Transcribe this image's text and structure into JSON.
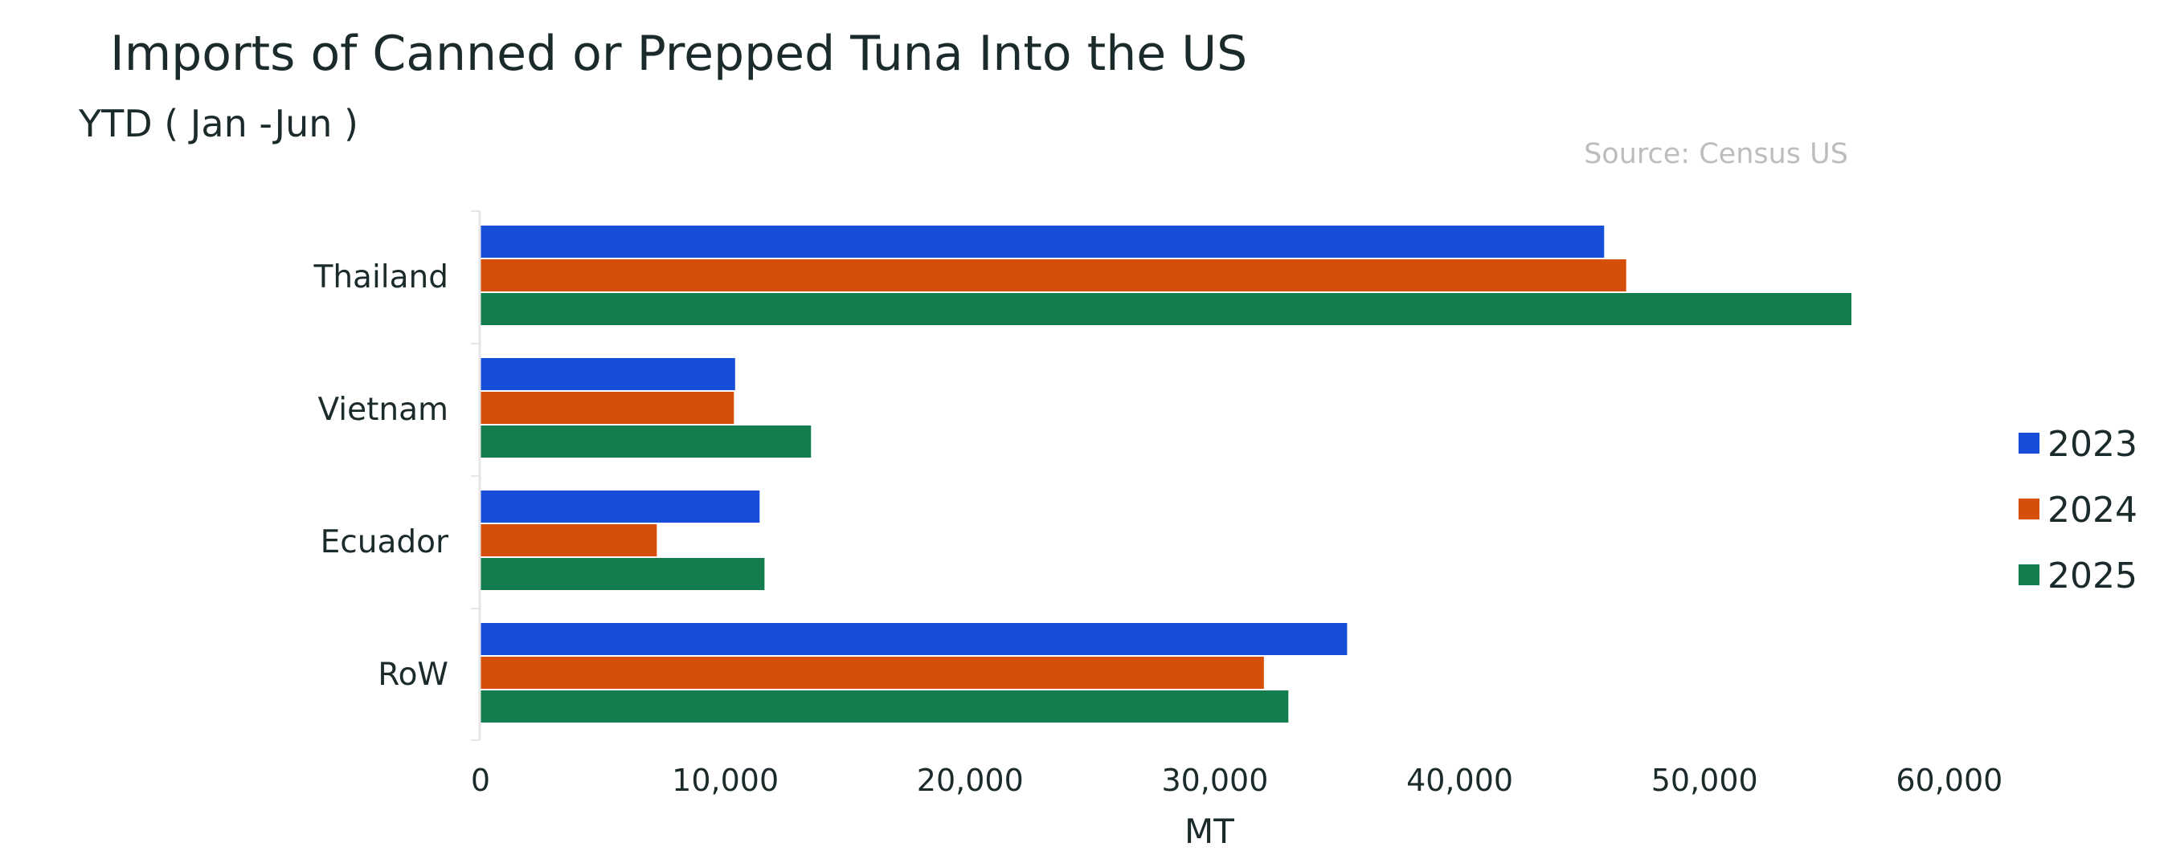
{
  "chart_data": {
    "type": "bar",
    "orientation": "horizontal",
    "title": "Imports of Canned or Prepped Tuna Into the US",
    "subtitle": "YTD ( Jan -Jun )",
    "source": "Source: Census US",
    "xlabel": "MT",
    "ylabel": "",
    "xlim": [
      0,
      60000
    ],
    "x_ticks": [
      0,
      10000,
      20000,
      30000,
      40000,
      50000,
      60000
    ],
    "x_tick_labels": [
      "0",
      "10,000",
      "20,000",
      "30,000",
      "40,000",
      "50,000",
      "60,000"
    ],
    "categories": [
      "Thailand",
      "Vietnam",
      "Ecuador",
      "RoW"
    ],
    "series": [
      {
        "name": "2023",
        "color": "#174ed8",
        "values": [
          45900,
          10400,
          11400,
          35400
        ]
      },
      {
        "name": "2024",
        "color": "#d64f08",
        "values": [
          46800,
          10350,
          7200,
          32000
        ]
      },
      {
        "name": "2025",
        "color": "#137d4e",
        "values": [
          56000,
          13500,
          11600,
          33000
        ]
      }
    ],
    "legend_position": "right",
    "grid": false
  }
}
